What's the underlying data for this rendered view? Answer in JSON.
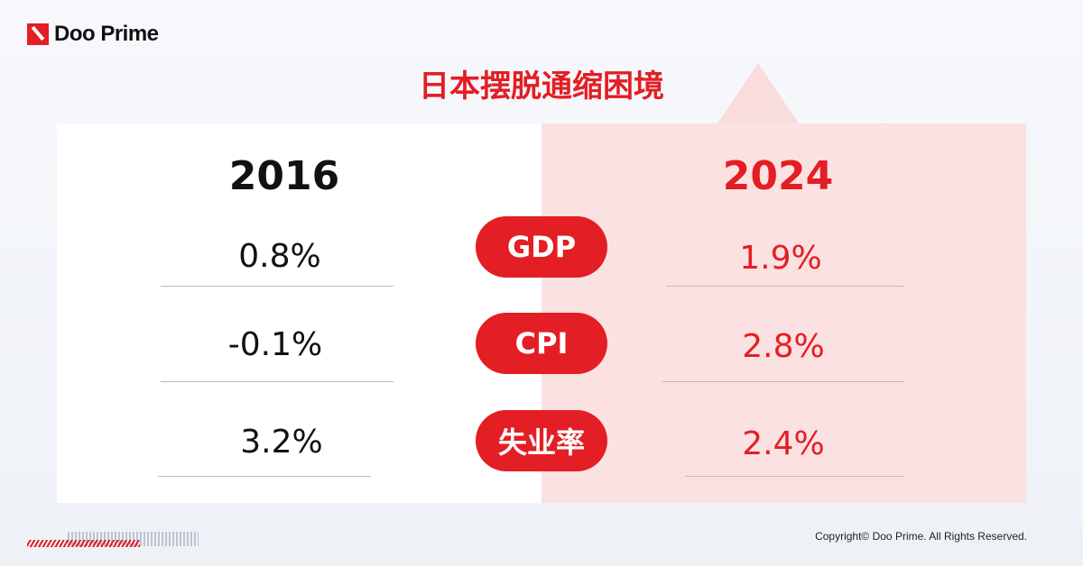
{
  "brand": {
    "name": "Doo Prime",
    "accent": "#e31e24"
  },
  "title": "日本摆脱通缩困境",
  "columns": {
    "left_year": "2016",
    "right_year": "2024"
  },
  "rows": [
    {
      "label": "GDP",
      "left": "0.8%",
      "right": "1.9%"
    },
    {
      "label": "CPI",
      "left": "-0.1%",
      "right": "2.8%"
    },
    {
      "label": "失业率",
      "left": "3.2%",
      "right": "2.4%"
    }
  ],
  "footer": {
    "copyright": "Copyright© Doo Prime. All Rights Reserved."
  }
}
